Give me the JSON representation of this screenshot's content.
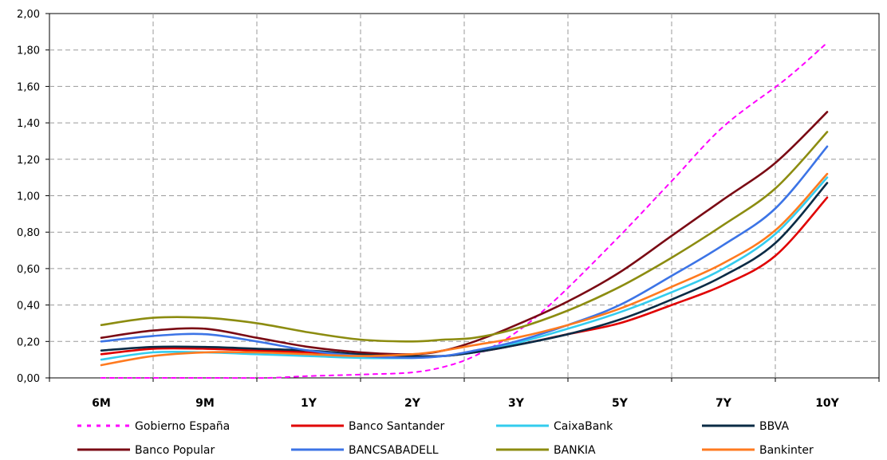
{
  "chart_data": {
    "type": "line",
    "title": "",
    "xlabel": "",
    "ylabel": "",
    "x": [
      "6M",
      "9M",
      "1Y",
      "2Y",
      "3Y",
      "5Y",
      "7Y",
      "10Y"
    ],
    "ylim": [
      0,
      2.0
    ],
    "yticks": [
      "0,00",
      "0,20",
      "0,40",
      "0,60",
      "0,80",
      "1,00",
      "1,20",
      "1,40",
      "1,60",
      "1,80",
      "2,00"
    ],
    "grid": true,
    "legend": "bottom",
    "series": [
      {
        "name": "Gobierno España",
        "color": "#ff00ff",
        "dashed": true,
        "points": [
          [
            0,
            0.0
          ],
          [
            1,
            -0.02
          ],
          [
            1.6,
            0.0
          ],
          [
            2,
            0.01
          ],
          [
            2.6,
            0.02
          ],
          [
            3,
            0.03
          ],
          [
            3.3,
            0.06
          ],
          [
            3.6,
            0.12
          ],
          [
            4,
            0.25
          ],
          [
            4.4,
            0.44
          ],
          [
            5,
            0.78
          ],
          [
            5.5,
            1.08
          ],
          [
            6,
            1.38
          ],
          [
            6.6,
            1.64
          ],
          [
            7,
            1.84
          ]
        ]
      },
      {
        "name": "Banco Santander",
        "color": "#e00000",
        "points": [
          [
            0,
            0.13
          ],
          [
            0.5,
            0.16
          ],
          [
            1,
            0.16
          ],
          [
            1.5,
            0.15
          ],
          [
            2,
            0.14
          ],
          [
            2.5,
            0.13
          ],
          [
            3,
            0.12
          ],
          [
            3.3,
            0.12
          ],
          [
            3.6,
            0.14
          ],
          [
            4,
            0.18
          ],
          [
            4.5,
            0.24
          ],
          [
            5,
            0.3
          ],
          [
            5.5,
            0.4
          ],
          [
            6,
            0.51
          ],
          [
            6.5,
            0.67
          ],
          [
            7,
            0.99
          ]
        ]
      },
      {
        "name": "CaixaBank",
        "color": "#33ccee",
        "points": [
          [
            0,
            0.1
          ],
          [
            0.5,
            0.14
          ],
          [
            1,
            0.14
          ],
          [
            1.5,
            0.13
          ],
          [
            2,
            0.12
          ],
          [
            2.5,
            0.11
          ],
          [
            3,
            0.11
          ],
          [
            3.3,
            0.12
          ],
          [
            3.6,
            0.14
          ],
          [
            4,
            0.19
          ],
          [
            4.5,
            0.27
          ],
          [
            5,
            0.36
          ],
          [
            5.5,
            0.47
          ],
          [
            6,
            0.6
          ],
          [
            6.5,
            0.79
          ],
          [
            7,
            1.1
          ]
        ]
      },
      {
        "name": "BBVA",
        "color": "#0b2b45",
        "points": [
          [
            0,
            0.15
          ],
          [
            0.5,
            0.17
          ],
          [
            1,
            0.17
          ],
          [
            1.5,
            0.16
          ],
          [
            2,
            0.15
          ],
          [
            2.5,
            0.13
          ],
          [
            3,
            0.12
          ],
          [
            3.3,
            0.12
          ],
          [
            3.6,
            0.14
          ],
          [
            4,
            0.18
          ],
          [
            4.5,
            0.24
          ],
          [
            5,
            0.32
          ],
          [
            5.5,
            0.43
          ],
          [
            6,
            0.56
          ],
          [
            6.5,
            0.74
          ],
          [
            7,
            1.07
          ]
        ]
      },
      {
        "name": "Banco Popular",
        "color": "#7a0a14",
        "points": [
          [
            0,
            0.22
          ],
          [
            0.5,
            0.26
          ],
          [
            1,
            0.27
          ],
          [
            1.5,
            0.22
          ],
          [
            2,
            0.17
          ],
          [
            2.5,
            0.14
          ],
          [
            3,
            0.13
          ],
          [
            3.3,
            0.15
          ],
          [
            3.6,
            0.2
          ],
          [
            4,
            0.29
          ],
          [
            4.5,
            0.42
          ],
          [
            5,
            0.58
          ],
          [
            5.5,
            0.78
          ],
          [
            6,
            0.98
          ],
          [
            6.5,
            1.18
          ],
          [
            7,
            1.46
          ]
        ]
      },
      {
        "name": "BANCSABADELL",
        "color": "#3c74e6",
        "points": [
          [
            0,
            0.2
          ],
          [
            0.5,
            0.23
          ],
          [
            1,
            0.24
          ],
          [
            1.5,
            0.2
          ],
          [
            2,
            0.15
          ],
          [
            2.5,
            0.12
          ],
          [
            3,
            0.11
          ],
          [
            3.3,
            0.12
          ],
          [
            3.6,
            0.15
          ],
          [
            4,
            0.2
          ],
          [
            4.5,
            0.29
          ],
          [
            5,
            0.4
          ],
          [
            5.5,
            0.56
          ],
          [
            6,
            0.73
          ],
          [
            6.5,
            0.93
          ],
          [
            7,
            1.27
          ]
        ]
      },
      {
        "name": "BANKIA",
        "color": "#8c8c10",
        "points": [
          [
            0,
            0.29
          ],
          [
            0.5,
            0.33
          ],
          [
            1,
            0.33
          ],
          [
            1.5,
            0.3
          ],
          [
            2,
            0.25
          ],
          [
            2.5,
            0.21
          ],
          [
            3,
            0.2
          ],
          [
            3.3,
            0.21
          ],
          [
            3.6,
            0.22
          ],
          [
            4,
            0.27
          ],
          [
            4.5,
            0.37
          ],
          [
            5,
            0.5
          ],
          [
            5.5,
            0.66
          ],
          [
            6,
            0.84
          ],
          [
            6.5,
            1.04
          ],
          [
            7,
            1.35
          ]
        ]
      },
      {
        "name": "Bankinter",
        "color": "#ff7a1f",
        "points": [
          [
            0,
            0.07
          ],
          [
            0.5,
            0.12
          ],
          [
            1,
            0.14
          ],
          [
            1.5,
            0.14
          ],
          [
            2,
            0.13
          ],
          [
            2.5,
            0.12
          ],
          [
            3,
            0.13
          ],
          [
            3.3,
            0.15
          ],
          [
            3.6,
            0.18
          ],
          [
            4,
            0.22
          ],
          [
            4.5,
            0.29
          ],
          [
            5,
            0.38
          ],
          [
            5.5,
            0.5
          ],
          [
            6,
            0.63
          ],
          [
            6.5,
            0.81
          ],
          [
            7,
            1.12
          ]
        ]
      }
    ]
  }
}
